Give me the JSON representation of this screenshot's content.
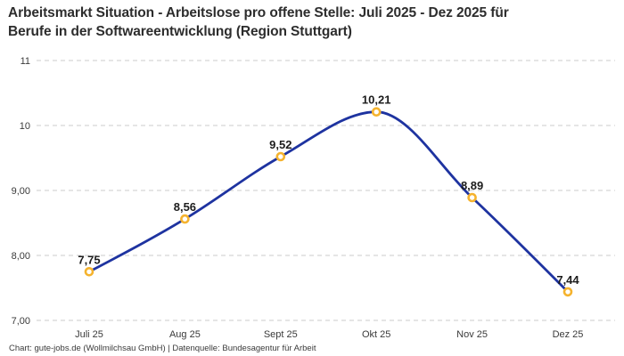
{
  "header": {
    "title_line1": "Arbeitsmarkt Situation - Arbeitslose pro offene Stelle: Juli 2025 - Dez 2025 für",
    "title_line2": "Berufe in der Softwareentwicklung (Region Stuttgart)"
  },
  "footer": {
    "credit": "Chart: gute-jobs.de (Wollmilchsau GmbH) | Datenquelle: Bundesagentur für Arbeit"
  },
  "chart_data": {
    "type": "line",
    "title": "Arbeitsmarkt Situation - Arbeitslose pro offene Stelle: Juli 2025 - Dez 2025 für Berufe in der Softwareentwicklung (Region Stuttgart)",
    "categories": [
      "Juli 25",
      "Aug 25",
      "Sept 25",
      "Okt 25",
      "Nov 25",
      "Dez 25"
    ],
    "values": [
      7.75,
      8.56,
      9.52,
      10.21,
      8.89,
      7.44
    ],
    "point_labels": [
      "7,75",
      "8,56",
      "9,52",
      "10,21",
      "8,89",
      "7,44"
    ],
    "xlabel": "",
    "ylabel": "",
    "ylim": [
      7,
      11
    ],
    "y_ticks": [
      {
        "value": 7,
        "label": "7,00"
      },
      {
        "value": 8,
        "label": "8,00"
      },
      {
        "value": 9,
        "label": "9,00"
      },
      {
        "value": 10,
        "label": "10"
      },
      {
        "value": 11,
        "label": "11"
      }
    ],
    "grid": "horizontal-dashed",
    "legend": "none",
    "curve": "smooth-monotone",
    "marker": "open-circle",
    "colors": {
      "line": "#1e33a0",
      "marker_ring": "#f5b32e",
      "marker_fill": "#ffffff",
      "grid": "#cbcbcb",
      "axis_text": "#3a3a3a",
      "label_text": "#1c1c1c"
    }
  }
}
